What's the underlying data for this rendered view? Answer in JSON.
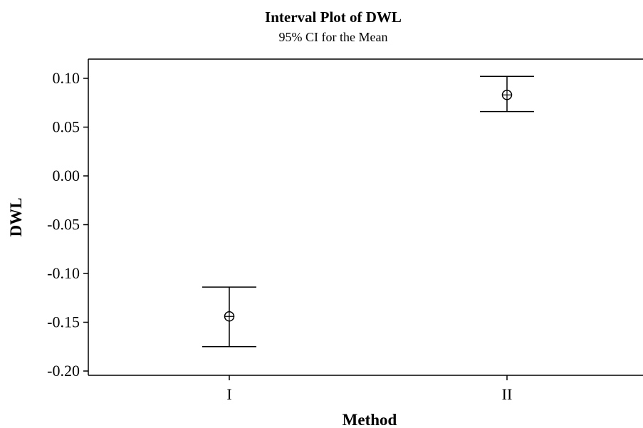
{
  "chart_data": {
    "type": "interval",
    "title": "Interval Plot of DWL",
    "subtitle": "95% CI for the Mean",
    "xlabel": "Method",
    "ylabel": "DWL",
    "categories": [
      "I",
      "II"
    ],
    "series": [
      {
        "points": [
          {
            "category": "I",
            "mean": -0.144,
            "lower": -0.175,
            "upper": -0.114
          },
          {
            "category": "II",
            "mean": 0.083,
            "lower": 0.066,
            "upper": 0.102
          }
        ]
      }
    ],
    "yticks": [
      0.1,
      0.05,
      0.0,
      -0.05,
      -0.1,
      -0.15,
      -0.2
    ],
    "ytick_labels": [
      "0.10",
      "0.05",
      "0.00",
      "-0.05",
      "-0.10",
      "-0.15",
      "-0.20"
    ],
    "ylim": [
      -0.2,
      0.1
    ],
    "grid": false,
    "legend": "none",
    "colors": {
      "line": "#000000",
      "background": "#ffffff"
    }
  }
}
